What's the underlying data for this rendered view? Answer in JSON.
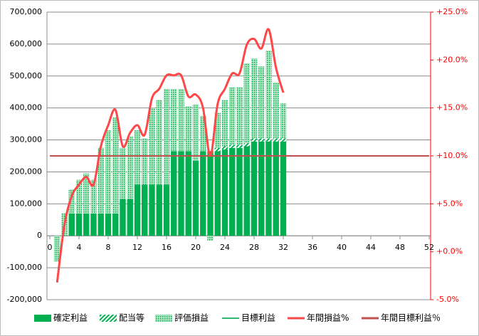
{
  "chart_data": {
    "type": "bar-line-combo",
    "x": [
      1,
      2,
      3,
      4,
      5,
      6,
      7,
      8,
      9,
      10,
      11,
      12,
      13,
      14,
      15,
      16,
      17,
      18,
      19,
      20,
      21,
      22,
      23,
      24,
      25,
      26,
      27,
      28,
      29,
      30,
      31,
      32
    ],
    "series": [
      {
        "name": "確定利益",
        "color": "#00b050",
        "values": [
          0,
          0,
          70000,
          70000,
          70000,
          70000,
          70000,
          70000,
          70000,
          115000,
          115000,
          160000,
          160000,
          160000,
          160000,
          160000,
          265000,
          265000,
          265000,
          235000,
          265000,
          265000,
          265000,
          270000,
          275000,
          275000,
          280000,
          295000,
          295000,
          295000,
          295000,
          295000
        ]
      },
      {
        "name": "配当等",
        "color": "#00b050",
        "values": [
          0,
          0,
          0,
          0,
          0,
          0,
          0,
          0,
          0,
          0,
          0,
          0,
          0,
          0,
          0,
          0,
          0,
          0,
          0,
          0,
          0,
          0,
          10000,
          10000,
          10000,
          10000,
          10000,
          10000,
          10000,
          10000,
          10000,
          10000
        ]
      },
      {
        "name": "評価損益",
        "color": "#00b050",
        "values": [
          -80000,
          70000,
          75000,
          105000,
          125000,
          105000,
          205000,
          260000,
          300000,
          160000,
          195000,
          170000,
          145000,
          240000,
          265000,
          300000,
          195000,
          195000,
          140000,
          175000,
          110000,
          -15000,
          110000,
          145000,
          180000,
          180000,
          250000,
          250000,
          225000,
          275000,
          175000,
          110000
        ]
      },
      {
        "name": "目標利益",
        "color": "#2eb872",
        "x": [
          0,
          52
        ],
        "values": [
          250000,
          250000
        ]
      },
      {
        "name": "年間損益%",
        "color": "#ff4747",
        "axis": "y2",
        "values": [
          -3.2,
          2.8,
          5.8,
          7.0,
          7.8,
          7.0,
          11.0,
          13.2,
          14.8,
          11.0,
          12.4,
          13.2,
          12.2,
          16.0,
          17.0,
          18.4,
          18.4,
          18.4,
          16.2,
          16.4,
          15.0,
          10.0,
          15.4,
          17.0,
          18.6,
          18.6,
          21.6,
          22.2,
          21.2,
          23.2,
          19.2,
          16.6
        ]
      },
      {
        "name": "年間目標利益％",
        "color": "#c0504d",
        "axis": "y2",
        "x": [
          0,
          52
        ],
        "values": [
          10,
          10
        ]
      }
    ],
    "xlim": [
      0,
      52
    ],
    "xticks": [
      0,
      4,
      8,
      12,
      16,
      20,
      24,
      28,
      32,
      36,
      40,
      44,
      48,
      52
    ],
    "ylim": [
      -200000,
      700000
    ],
    "yticks": [
      {
        "value": -200000,
        "label": "-200,000"
      },
      {
        "value": -100000,
        "label": "-100,000"
      },
      0,
      {
        "value": 100000,
        "label": "100,000"
      },
      {
        "value": 200000,
        "label": "200,000"
      },
      {
        "value": 300000,
        "label": "300,000"
      },
      {
        "value": 400000,
        "label": "400,000"
      },
      {
        "value": 500000,
        "label": "500,000"
      },
      {
        "value": 600000,
        "label": "600,000"
      },
      {
        "value": 700000,
        "label": "700,000"
      }
    ],
    "y2lim": [
      -5,
      25
    ],
    "y2ticks": [
      {
        "value": -5,
        "label": "-5.0%"
      },
      {
        "value": 0,
        "label": "+0.0%"
      },
      {
        "value": 5,
        "label": "+5.0%"
      },
      {
        "value": 10,
        "label": "+10.0%"
      },
      {
        "value": 15,
        "label": "+15.0%"
      },
      {
        "value": 20,
        "label": "+20.0%"
      },
      {
        "value": 25,
        "label": "+25.0%"
      }
    ],
    "grid": true
  }
}
